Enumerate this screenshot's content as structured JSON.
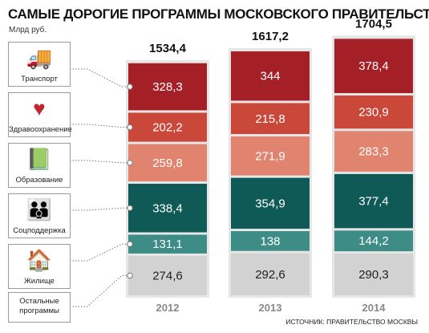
{
  "title": "САМЫЕ ДОРОГИЕ ПРОГРАММЫ МОСКОВСКОГО ПРАВИТЕЛЬСТВА",
  "unit": "Млрд руб.",
  "source": "ИСТОЧНИК: ПРАВИТЕЛЬСТВО МОСКВЫ",
  "categories_ui": [
    {
      "label": "Транспорт",
      "icon": "bus-icon"
    },
    {
      "label": "Здравоохранение",
      "icon": "heart-cross-icon"
    },
    {
      "label": "Образование",
      "icon": "book-icon"
    },
    {
      "label": "Соцподдержка",
      "icon": "family-icon"
    },
    {
      "label": "Жилище",
      "icon": "house-icon"
    }
  ],
  "other_label": "Остальные\nпрограммы",
  "colors": {
    "Транспорт": "#a51f27",
    "Здравоохранение": "#c9483a",
    "Образование": "#e0846f",
    "Соцподдержка": "#0f5a57",
    "Жилище": "#3d8d86",
    "Остальные программы": "#d2d2d2"
  },
  "chart_data": {
    "type": "bar",
    "stacked": true,
    "categories": [
      "2012",
      "2013",
      "2014"
    ],
    "totals": [
      "1534,4",
      "1617,2",
      "1704,5"
    ],
    "series": [
      {
        "name": "Остальные программы",
        "values": [
          274.6,
          292.6,
          290.3
        ],
        "labels": [
          "274,6",
          "292,6",
          "290,3"
        ]
      },
      {
        "name": "Жилище",
        "values": [
          131.1,
          138,
          144.2
        ],
        "labels": [
          "131,1",
          "138",
          "144,2"
        ]
      },
      {
        "name": "Соцподдержка",
        "values": [
          338.4,
          354.9,
          377.4
        ],
        "labels": [
          "338,4",
          "354,9",
          "377,4"
        ]
      },
      {
        "name": "Образование",
        "values": [
          259.8,
          271.9,
          283.3
        ],
        "labels": [
          "259,8",
          "271,9",
          "283,3"
        ]
      },
      {
        "name": "Здравоохранение",
        "values": [
          202.2,
          215.8,
          230.9
        ],
        "labels": [
          "202,2",
          "215,8",
          "230,9"
        ]
      },
      {
        "name": "Транспорт",
        "values": [
          328.3,
          344,
          378.4
        ],
        "labels": [
          "328,3",
          "344",
          "378,4"
        ]
      }
    ]
  }
}
